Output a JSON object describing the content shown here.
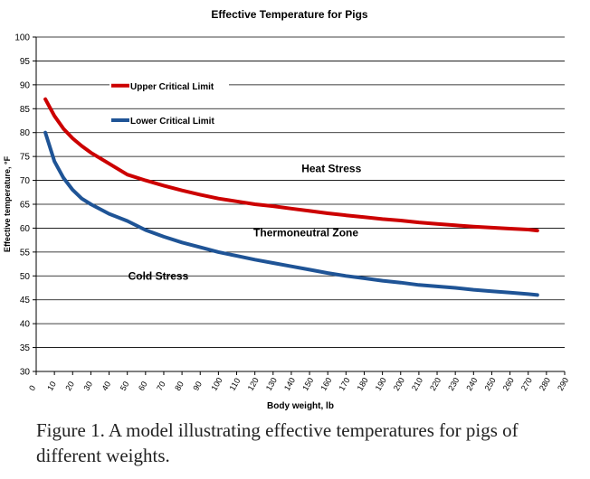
{
  "chart_data": {
    "type": "line",
    "title": "Effective Temperature for Pigs",
    "xlabel": "Body weight, lb",
    "ylabel": "Effective temperature, °F",
    "xlim": [
      0,
      290
    ],
    "ylim": [
      30,
      100
    ],
    "xticks": [
      0,
      10,
      20,
      30,
      40,
      50,
      60,
      70,
      80,
      90,
      100,
      110,
      120,
      130,
      140,
      150,
      160,
      170,
      180,
      190,
      200,
      210,
      220,
      230,
      240,
      250,
      260,
      270,
      280,
      290
    ],
    "yticks": [
      30,
      35,
      40,
      45,
      50,
      55,
      60,
      65,
      70,
      75,
      80,
      85,
      90,
      95,
      100
    ],
    "grid": "horizontal",
    "series": [
      {
        "name": "Upper Critical Limit",
        "color": "#cc0000",
        "x": [
          5,
          10,
          15,
          20,
          25,
          30,
          40,
          50,
          60,
          70,
          80,
          90,
          100,
          110,
          120,
          130,
          140,
          150,
          160,
          170,
          180,
          190,
          200,
          210,
          220,
          230,
          240,
          250,
          260,
          270,
          275
        ],
        "y": [
          87,
          83.5,
          80.8,
          78.8,
          77.2,
          75.8,
          73.5,
          71.2,
          70,
          68.9,
          67.9,
          67,
          66.2,
          65.6,
          65,
          64.6,
          64.1,
          63.6,
          63.1,
          62.7,
          62.3,
          61.9,
          61.6,
          61.2,
          60.9,
          60.6,
          60.3,
          60.1,
          59.9,
          59.7,
          59.5
        ]
      },
      {
        "name": "Lower Critical Limit",
        "color": "#1f5496",
        "x": [
          5,
          10,
          15,
          20,
          25,
          30,
          40,
          50,
          60,
          70,
          80,
          90,
          100,
          110,
          120,
          130,
          140,
          150,
          160,
          170,
          180,
          190,
          200,
          210,
          220,
          230,
          240,
          250,
          260,
          270,
          275
        ],
        "y": [
          80,
          74,
          70.5,
          68,
          66.2,
          65,
          63,
          61.5,
          59.6,
          58.2,
          57,
          56,
          55,
          54.2,
          53.4,
          52.7,
          52,
          51.3,
          50.6,
          50,
          49.5,
          49,
          48.6,
          48.1,
          47.8,
          47.5,
          47.1,
          46.8,
          46.5,
          46.2,
          46
        ]
      }
    ],
    "annotations": [
      {
        "text": "Heat Stress",
        "x": 162,
        "y": 72.5
      },
      {
        "text": "Thermoneutral Zone",
        "x": 148,
        "y": 59
      },
      {
        "text": "Cold Stress",
        "x": 67,
        "y": 50
      }
    ]
  },
  "caption": "Figure 1.  A model illustrating effective temperatures for pigs of different weights."
}
